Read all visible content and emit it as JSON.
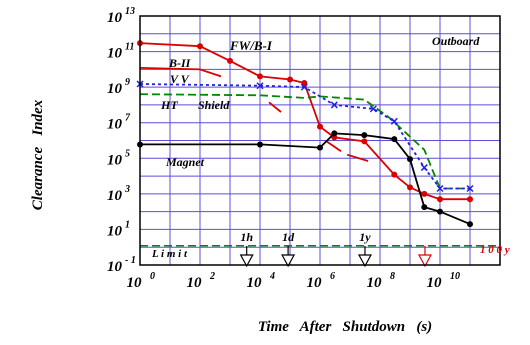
{
  "chart_data": {
    "type": "line",
    "xscale": "log",
    "yscale": "log",
    "xlim": [
      1,
      1000000000000
    ],
    "ylim": [
      0.1,
      10000000000000
    ],
    "xlabel": "Time   After   Shutdown   (s)",
    "ylabel": "Clearance   Index",
    "grid": true,
    "x_ticks": [
      {
        "base": "10",
        "exp": "0",
        "value": 1
      },
      {
        "base": "10",
        "exp": "2",
        "value": 100
      },
      {
        "base": "10",
        "exp": "4",
        "value": 10000
      },
      {
        "base": "10",
        "exp": "6",
        "value": 1000000
      },
      {
        "base": "10",
        "exp": "8",
        "value": 100000000
      },
      {
        "base": "10",
        "exp": "10",
        "value": 10000000000
      }
    ],
    "y_ticks": [
      {
        "base": "10",
        "exp": "- 1",
        "value": 0.1
      },
      {
        "base": "10",
        "exp": "1",
        "value": 10
      },
      {
        "base": "10",
        "exp": "3",
        "value": 1000
      },
      {
        "base": "10",
        "exp": "5",
        "value": 100000
      },
      {
        "base": "10",
        "exp": "7",
        "value": 10000000
      },
      {
        "base": "10",
        "exp": "9",
        "value": 1000000000
      },
      {
        "base": "10",
        "exp": "11",
        "value": 100000000000
      },
      {
        "base": "10",
        "exp": "13",
        "value": 10000000000000
      }
    ],
    "texts": {
      "outboard": "Outboard",
      "fw": "FW/B-I",
      "b2": "B-II",
      "vv": "V   V",
      "ht": "HT",
      "shield": "Shield",
      "magnet": "Magnet",
      "limit": "L i m i t",
      "y100": "1 0 0 y"
    },
    "series": [
      {
        "label_key": "fw",
        "color": "#dd0000",
        "style": "solid",
        "marker": "circle",
        "points": [
          [
            1,
            300000000000.0
          ],
          [
            100,
            200000000000.0
          ],
          [
            1000,
            30000000000.0
          ],
          [
            10000,
            4000000000.0
          ],
          [
            100000,
            2700000000.0
          ],
          [
            300000,
            1700000000.0
          ],
          [
            1000000,
            6000000.0
          ],
          [
            3000000,
            1500000.0
          ],
          [
            30000000,
            900000.0
          ],
          [
            300000000,
            12000.0
          ],
          [
            1000000000,
            2300.0
          ],
          [
            3000000000,
            1000.0
          ],
          [
            10000000000,
            500.0
          ],
          [
            100000000000,
            500.0
          ]
        ]
      },
      {
        "label_key": "b2",
        "color": "#dd0000",
        "style": "solid",
        "marker": "none",
        "points": [
          [
            1,
            12000000000.0
          ],
          [
            100,
            10000000000.0
          ],
          [
            500,
            4000000000.0
          ]
        ]
      },
      {
        "label_key": "b2_segments",
        "color": "#dd0000",
        "style": "solid",
        "marker": "none",
        "points": [
          [
            20000,
            140000000.0
          ],
          [
            50000,
            40000000.0
          ]
        ]
      },
      {
        "label_key": "b2_segments2",
        "color": "#dd0000",
        "style": "solid",
        "marker": "none",
        "points": [
          [
            1500000,
            1000000.0
          ],
          [
            5000000,
            250000.0
          ]
        ]
      },
      {
        "label_key": "b2_segments3",
        "color": "#dd0000",
        "style": "solid",
        "marker": "none",
        "points": [
          [
            8000000,
            160000.0
          ],
          [
            40000000,
            70000.0
          ]
        ]
      },
      {
        "label_key": "shield",
        "color": "#008800",
        "style": "dashed",
        "marker": "none",
        "points": [
          [
            1,
            400000000.0
          ],
          [
            10000,
            350000000.0
          ],
          [
            300000,
            250000000.0
          ],
          [
            1000000,
            300000000.0
          ],
          [
            30000000,
            200000000.0
          ],
          [
            200000000,
            20000000.0
          ],
          [
            3000000000,
            300000.0
          ],
          [
            10000000000,
            2000.0
          ],
          [
            100000000000,
            2000.0
          ]
        ]
      },
      {
        "label_key": "vv",
        "color": "#2222dd",
        "style": "dotted",
        "marker": "x",
        "points": [
          [
            1,
            1500000000.0
          ],
          [
            10000,
            1200000000.0
          ],
          [
            300000,
            1000000000.0
          ],
          [
            3000000,
            100000000.0
          ],
          [
            60000000,
            60000000.0
          ],
          [
            300000000,
            12000000.0
          ],
          [
            3000000000,
            30000.0
          ],
          [
            10000000000,
            2000.0
          ],
          [
            100000000000,
            2000.0
          ]
        ]
      },
      {
        "label_key": "magnet",
        "color": "#000000",
        "style": "solid",
        "marker": "circle",
        "points": [
          [
            1,
            600000.0
          ],
          [
            10000,
            600000.0
          ],
          [
            1000000,
            400000.0
          ],
          [
            3000000,
            2500000.0
          ],
          [
            30000000,
            2000000.0
          ],
          [
            300000000,
            1200000.0
          ],
          [
            1000000000,
            90000.0
          ],
          [
            3000000000,
            180.0
          ],
          [
            10000000000,
            100.0
          ],
          [
            100000000000,
            20.0
          ]
        ]
      },
      {
        "label_key": "limit",
        "color": "#008800",
        "style": "dashed",
        "marker": "none",
        "points": [
          [
            1,
            1.2
          ],
          [
            1000000000000,
            1.2
          ]
        ]
      }
    ],
    "annotations": [
      {
        "text": "1h",
        "x": 3600,
        "arrow_color": "#000000"
      },
      {
        "text": "1d",
        "x": 86400,
        "arrow_color": "#000000"
      },
      {
        "text": "1y",
        "x": 31536000,
        "arrow_color": "#000000"
      },
      {
        "text": "",
        "x": 3153600000,
        "arrow_color": "#dd0000"
      }
    ]
  }
}
